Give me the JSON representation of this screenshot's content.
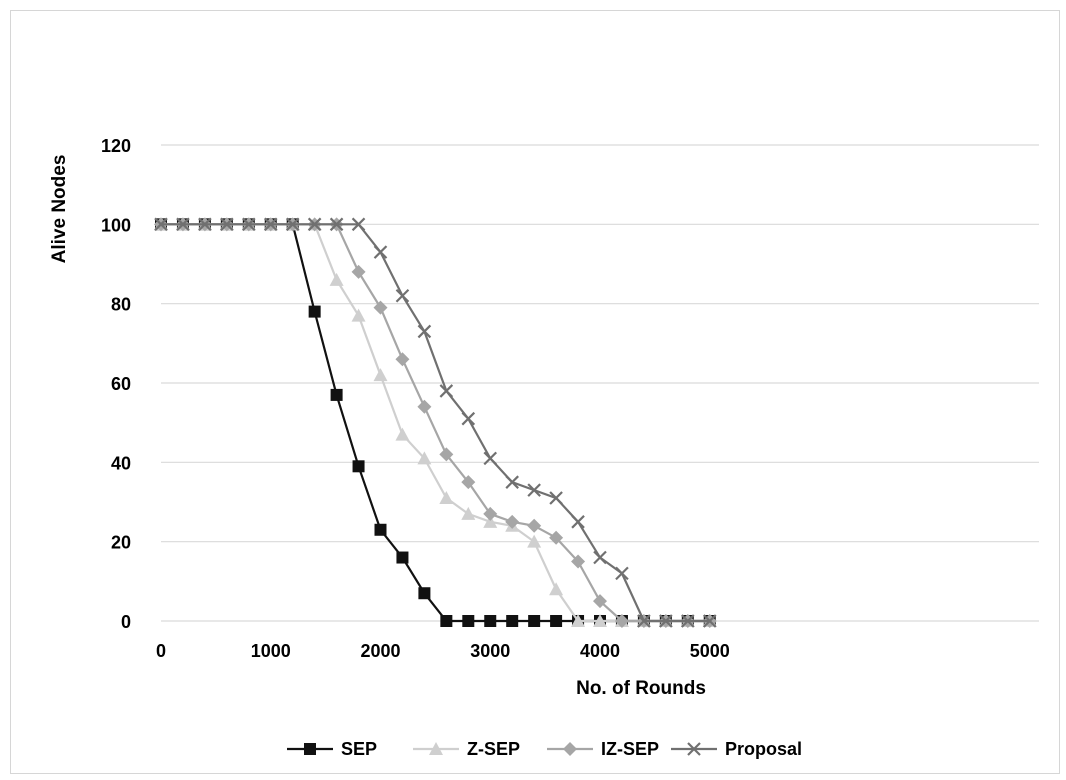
{
  "chart_data": {
    "type": "line",
    "title": "",
    "xlabel": "No. of Rounds",
    "ylabel": "Alive Nodes",
    "x_ticks": [
      "0",
      "1000",
      "2000",
      "3000",
      "4000",
      "5000"
    ],
    "y_ticks": [
      "0",
      "20",
      "40",
      "60",
      "80",
      "100",
      "120"
    ],
    "xlim": [
      0,
      8000
    ],
    "ylim": [
      0,
      120
    ],
    "grid": "horizontal",
    "legend_position": "bottom",
    "x": [
      0,
      200,
      400,
      600,
      800,
      1000,
      1200,
      1400,
      1600,
      1800,
      2000,
      2200,
      2400,
      2600,
      2800,
      3000,
      3200,
      3400,
      3600,
      3800,
      4000,
      4200,
      4400,
      4600,
      4800,
      5000
    ],
    "series": [
      {
        "name": "SEP",
        "color": "#111111",
        "marker": "square",
        "values": [
          100,
          100,
          100,
          100,
          100,
          100,
          100,
          78,
          57,
          39,
          23,
          16,
          7,
          0,
          0,
          0,
          0,
          0,
          0,
          0,
          0,
          0,
          0,
          0,
          0,
          0
        ]
      },
      {
        "name": "Z-SEP",
        "color": "#cfcfcf",
        "marker": "triangle",
        "values": [
          100,
          100,
          100,
          100,
          100,
          100,
          100,
          100,
          86,
          77,
          62,
          47,
          41,
          31,
          27,
          25,
          24,
          20,
          8,
          0,
          0,
          0,
          0,
          0,
          0,
          0
        ]
      },
      {
        "name": "IZ-SEP",
        "color": "#a6a6a6",
        "marker": "diamond",
        "values": [
          100,
          100,
          100,
          100,
          100,
          100,
          100,
          100,
          100,
          88,
          79,
          66,
          54,
          42,
          35,
          27,
          25,
          24,
          21,
          15,
          5,
          0,
          0,
          0,
          0,
          0
        ]
      },
      {
        "name": "Proposal",
        "color": "#707070",
        "marker": "x",
        "values": [
          100,
          100,
          100,
          100,
          100,
          100,
          100,
          100,
          100,
          100,
          93,
          82,
          73,
          58,
          51,
          41,
          35,
          33,
          31,
          25,
          16,
          12,
          0,
          0,
          0,
          0
        ]
      }
    ]
  }
}
